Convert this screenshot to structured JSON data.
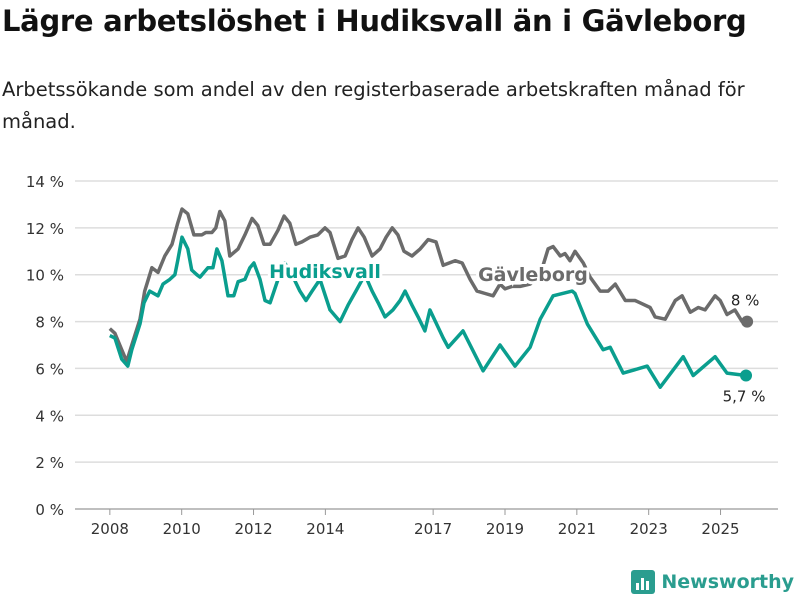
{
  "title": "Lägre arbetslöshet i Hudiksvall än i Gävleborg",
  "subtitle": "Arbetssökande som andel av den registerbaserade arbetskraften månad för månad.",
  "brand": "Newsworthy",
  "chart_data": {
    "type": "line",
    "title": "Lägre arbetslöshet i Hudiksvall än i Gävleborg",
    "xlabel": "",
    "ylabel": "",
    "xlim": [
      2007.03,
      2026.6
    ],
    "ylim": [
      0,
      14
    ],
    "grid": true,
    "x_ticks": [
      2008,
      2010,
      2012,
      2014,
      2017,
      2019,
      2021,
      2023,
      2025
    ],
    "x_tick_labels": [
      "2008",
      "2010",
      "2012",
      "2014",
      "2017",
      "2019",
      "2021",
      "2023",
      "2025"
    ],
    "y_ticks": [
      0,
      2,
      4,
      6,
      8,
      10,
      12,
      14
    ],
    "y_tick_labels": [
      "0 %",
      "2 %",
      "4 %",
      "6 %",
      "8 %",
      "10 %",
      "12 %",
      "14 %"
    ],
    "series": [
      {
        "name": "Gävleborg",
        "color": "#6b6b6b",
        "end_label": "8 %",
        "points": [
          [
            2008.0,
            7.7
          ],
          [
            2008.14,
            7.5
          ],
          [
            2008.33,
            6.8
          ],
          [
            2008.47,
            6.3
          ],
          [
            2008.61,
            7.0
          ],
          [
            2008.84,
            8.1
          ],
          [
            2008.97,
            9.3
          ],
          [
            2009.17,
            10.3
          ],
          [
            2009.34,
            10.1
          ],
          [
            2009.53,
            10.8
          ],
          [
            2009.73,
            11.3
          ],
          [
            2009.89,
            12.2
          ],
          [
            2010.01,
            12.8
          ],
          [
            2010.17,
            12.6
          ],
          [
            2010.34,
            11.7
          ],
          [
            2010.56,
            11.7
          ],
          [
            2010.67,
            11.8
          ],
          [
            2010.84,
            11.8
          ],
          [
            2010.95,
            12.0
          ],
          [
            2011.06,
            12.7
          ],
          [
            2011.2,
            12.3
          ],
          [
            2011.34,
            10.8
          ],
          [
            2011.57,
            11.1
          ],
          [
            2011.76,
            11.7
          ],
          [
            2011.96,
            12.4
          ],
          [
            2012.12,
            12.1
          ],
          [
            2012.29,
            11.3
          ],
          [
            2012.46,
            11.3
          ],
          [
            2012.68,
            11.9
          ],
          [
            2012.85,
            12.5
          ],
          [
            2013.01,
            12.2
          ],
          [
            2013.18,
            11.3
          ],
          [
            2013.35,
            11.4
          ],
          [
            2013.57,
            11.6
          ],
          [
            2013.79,
            11.7
          ],
          [
            2013.99,
            12.0
          ],
          [
            2014.13,
            11.8
          ],
          [
            2014.35,
            10.7
          ],
          [
            2014.55,
            10.8
          ],
          [
            2014.74,
            11.5
          ],
          [
            2014.91,
            12.0
          ],
          [
            2015.08,
            11.6
          ],
          [
            2015.3,
            10.8
          ],
          [
            2015.52,
            11.1
          ],
          [
            2015.69,
            11.6
          ],
          [
            2015.86,
            12.0
          ],
          [
            2016.02,
            11.7
          ],
          [
            2016.19,
            11.0
          ],
          [
            2016.41,
            10.8
          ],
          [
            2016.64,
            11.1
          ],
          [
            2016.86,
            11.5
          ],
          [
            2017.08,
            11.4
          ],
          [
            2017.28,
            10.4
          ],
          [
            2017.61,
            10.6
          ],
          [
            2017.81,
            10.5
          ],
          [
            2018.03,
            9.8
          ],
          [
            2018.22,
            9.3
          ],
          [
            2018.45,
            9.2
          ],
          [
            2018.67,
            9.1
          ],
          [
            2018.86,
            9.6
          ],
          [
            2019.0,
            9.4
          ],
          [
            2019.2,
            9.5
          ],
          [
            2019.42,
            9.5
          ],
          [
            2019.7,
            9.6
          ],
          [
            2019.98,
            10.0
          ],
          [
            2020.2,
            11.1
          ],
          [
            2020.34,
            11.2
          ],
          [
            2020.54,
            10.8
          ],
          [
            2020.67,
            10.9
          ],
          [
            2020.81,
            10.6
          ],
          [
            2020.95,
            11.0
          ],
          [
            2021.18,
            10.5
          ],
          [
            2021.37,
            9.9
          ],
          [
            2021.65,
            9.3
          ],
          [
            2021.87,
            9.3
          ],
          [
            2022.07,
            9.6
          ],
          [
            2022.35,
            8.9
          ],
          [
            2022.62,
            8.9
          ],
          [
            2022.76,
            8.8
          ],
          [
            2023.04,
            8.6
          ],
          [
            2023.18,
            8.2
          ],
          [
            2023.46,
            8.1
          ],
          [
            2023.74,
            8.9
          ],
          [
            2023.93,
            9.1
          ],
          [
            2024.16,
            8.4
          ],
          [
            2024.38,
            8.6
          ],
          [
            2024.57,
            8.5
          ],
          [
            2024.85,
            9.1
          ],
          [
            2024.99,
            8.9
          ],
          [
            2025.18,
            8.3
          ],
          [
            2025.4,
            8.5
          ],
          [
            2025.6,
            8.0
          ],
          [
            2025.74,
            8.0
          ]
        ]
      },
      {
        "name": "Hudiksvall",
        "color": "#0a9e8e",
        "end_label": "5,7 %",
        "points": [
          [
            2008.0,
            7.4
          ],
          [
            2008.14,
            7.3
          ],
          [
            2008.33,
            6.4
          ],
          [
            2008.5,
            6.1
          ],
          [
            2008.61,
            6.8
          ],
          [
            2008.84,
            7.9
          ],
          [
            2008.95,
            8.8
          ],
          [
            2009.11,
            9.3
          ],
          [
            2009.34,
            9.1
          ],
          [
            2009.48,
            9.6
          ],
          [
            2009.67,
            9.8
          ],
          [
            2009.81,
            10.0
          ],
          [
            2009.89,
            10.6
          ],
          [
            2010.01,
            11.6
          ],
          [
            2010.17,
            11.1
          ],
          [
            2010.28,
            10.2
          ],
          [
            2010.42,
            10.0
          ],
          [
            2010.51,
            9.9
          ],
          [
            2010.73,
            10.3
          ],
          [
            2010.87,
            10.3
          ],
          [
            2010.98,
            11.1
          ],
          [
            2011.12,
            10.6
          ],
          [
            2011.29,
            9.1
          ],
          [
            2011.45,
            9.1
          ],
          [
            2011.57,
            9.7
          ],
          [
            2011.76,
            9.8
          ],
          [
            2011.9,
            10.3
          ],
          [
            2012.01,
            10.5
          ],
          [
            2012.18,
            9.8
          ],
          [
            2012.32,
            8.9
          ],
          [
            2012.46,
            8.8
          ],
          [
            2012.68,
            9.8
          ],
          [
            2012.87,
            10.5
          ],
          [
            2013.07,
            10.0
          ],
          [
            2013.29,
            9.3
          ],
          [
            2013.46,
            8.9
          ],
          [
            2013.63,
            9.3
          ],
          [
            2013.85,
            9.8
          ],
          [
            2014.13,
            8.5
          ],
          [
            2014.41,
            8.0
          ],
          [
            2014.63,
            8.7
          ],
          [
            2014.85,
            9.3
          ],
          [
            2015.1,
            10.0
          ],
          [
            2015.3,
            9.3
          ],
          [
            2015.47,
            8.8
          ],
          [
            2015.66,
            8.2
          ],
          [
            2015.88,
            8.5
          ],
          [
            2016.08,
            8.9
          ],
          [
            2016.22,
            9.3
          ],
          [
            2016.41,
            8.7
          ],
          [
            2016.58,
            8.2
          ],
          [
            2016.77,
            7.6
          ],
          [
            2016.91,
            8.5
          ],
          [
            2017.28,
            7.3
          ],
          [
            2017.42,
            6.9
          ],
          [
            2017.83,
            7.6
          ],
          [
            2018.39,
            5.9
          ],
          [
            2018.86,
            7.0
          ],
          [
            2019.28,
            6.1
          ],
          [
            2019.7,
            6.9
          ],
          [
            2019.98,
            8.1
          ],
          [
            2020.34,
            9.1
          ],
          [
            2020.87,
            9.3
          ],
          [
            2020.95,
            9.2
          ],
          [
            2021.29,
            7.9
          ],
          [
            2021.73,
            6.8
          ],
          [
            2021.93,
            6.9
          ],
          [
            2022.29,
            5.8
          ],
          [
            2022.96,
            6.1
          ],
          [
            2023.32,
            5.2
          ],
          [
            2023.96,
            6.5
          ],
          [
            2024.24,
            5.7
          ],
          [
            2024.85,
            6.5
          ],
          [
            2025.18,
            5.8
          ],
          [
            2025.71,
            5.7
          ]
        ]
      }
    ]
  }
}
